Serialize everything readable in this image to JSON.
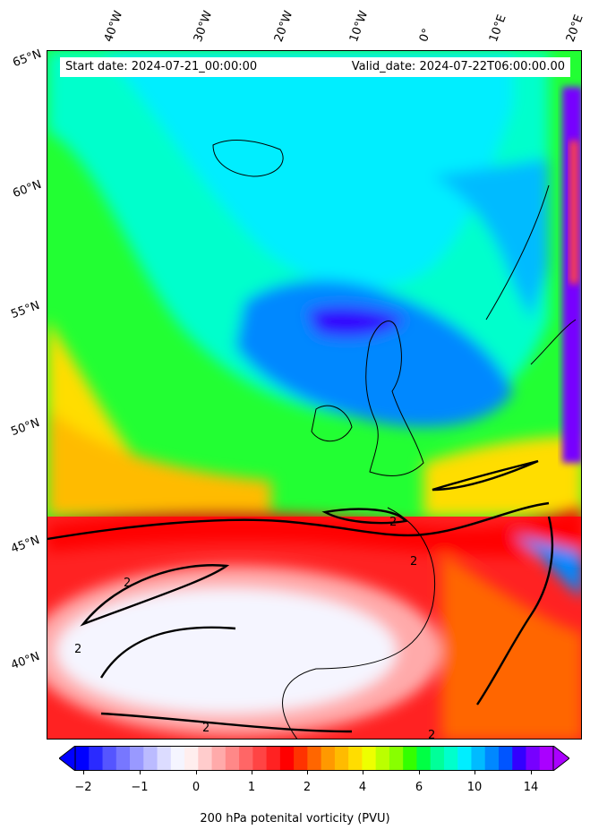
{
  "map": {
    "info": {
      "start": "Start date: 2024-07-21_00:00:00",
      "valid": "Valid_date: 2024-07-22T06:00:00.00"
    },
    "lon_labels": [
      "40°W",
      "30°W",
      "20°W",
      "10°W",
      "0°",
      "10°E",
      "20°E"
    ],
    "lat_labels": [
      "65°N",
      "60°N",
      "55°N",
      "50°N",
      "45°N",
      "40°N"
    ],
    "contour_label": "2"
  },
  "colorbar": {
    "ticks": [
      "−2",
      "−1",
      "0",
      "1",
      "2",
      "4",
      "6",
      "10",
      "14"
    ],
    "label": "200 hPa potenital vorticity (PVU)",
    "colors": [
      "#0000ff",
      "#2a2aff",
      "#5555ff",
      "#7777ff",
      "#9999ff",
      "#bbbbff",
      "#dcdcff",
      "#f5f5ff",
      "#ffeeee",
      "#ffcccc",
      "#ffaaaa",
      "#ff8888",
      "#ff6666",
      "#ff4444",
      "#ff2222",
      "#ff0000",
      "#ff3300",
      "#ff6600",
      "#ff9900",
      "#ffbb00",
      "#ffdd00",
      "#eeff00",
      "#bbff00",
      "#88ff00",
      "#33ff00",
      "#00ff44",
      "#00ff99",
      "#00ffcc",
      "#00eeff",
      "#00bbff",
      "#0088ff",
      "#0055ff",
      "#3300ff",
      "#7700ff",
      "#aa00ff"
    ]
  }
}
